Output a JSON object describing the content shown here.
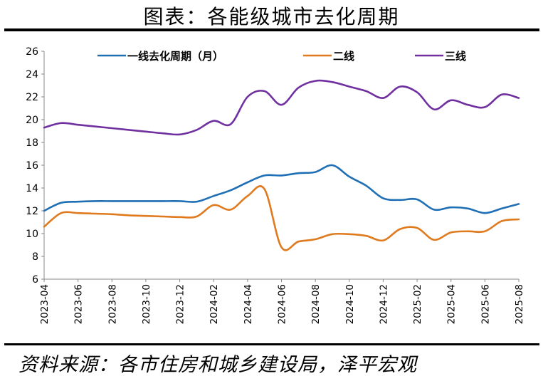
{
  "header": {
    "title": "图表：各能级城市去化周期"
  },
  "footer": {
    "source": "资料来源：各市住房和城乡建设局，泽平宏观"
  },
  "chart_data": {
    "type": "line",
    "title": "",
    "xlabel": "",
    "ylabel": "",
    "ylim": [
      6,
      26
    ],
    "yticks": [
      6,
      8,
      10,
      12,
      14,
      16,
      18,
      20,
      22,
      24,
      26
    ],
    "xrange": [
      "2023-04",
      "2025-08"
    ],
    "xticks": [
      "2023-04",
      "2023-06",
      "2023-08",
      "2023-10",
      "2023-12",
      "2024-02",
      "2024-04",
      "2024-06",
      "2024-08",
      "2024-10",
      "2024-12",
      "2025-02",
      "2025-04",
      "2025-06",
      "2025-08"
    ],
    "grid": false,
    "legend": "top",
    "series": [
      {
        "name": "一线去化周期（月）",
        "color": "#1f6fb4",
        "x": [
          "2023-04",
          "2023-05",
          "2023-06",
          "2023-07",
          "2023-08",
          "2023-09",
          "2023-10",
          "2023-11",
          "2023-12",
          "2024-01",
          "2024-02",
          "2024-03",
          "2024-04",
          "2024-05",
          "2024-06",
          "2024-07",
          "2024-08",
          "2024-09",
          "2024-10",
          "2024-11",
          "2024-12",
          "2025-01",
          "2025-02",
          "2025-03",
          "2025-04",
          "2025-05",
          "2025-06",
          "2025-07",
          "2025-08"
        ],
        "values": [
          12.0,
          12.7,
          12.8,
          12.85,
          12.85,
          12.85,
          12.85,
          12.85,
          12.85,
          12.8,
          13.3,
          13.8,
          14.5,
          15.1,
          15.1,
          15.3,
          15.4,
          16.0,
          15.0,
          14.2,
          13.1,
          12.95,
          13.0,
          12.1,
          12.3,
          12.2,
          11.8,
          12.2,
          12.6
        ]
      },
      {
        "name": "二线",
        "color": "#e07a1f",
        "x": [
          "2023-04",
          "2023-05",
          "2023-06",
          "2023-07",
          "2023-08",
          "2023-09",
          "2023-10",
          "2023-11",
          "2023-12",
          "2024-01",
          "2024-02",
          "2024-03",
          "2024-04",
          "2024-05",
          "2024-06",
          "2024-07",
          "2024-08",
          "2024-09",
          "2024-10",
          "2024-11",
          "2024-12",
          "2025-01",
          "2025-02",
          "2025-03",
          "2025-04",
          "2025-05",
          "2025-06",
          "2025-07",
          "2025-08"
        ],
        "values": [
          10.6,
          11.8,
          11.8,
          11.75,
          11.7,
          11.6,
          11.55,
          11.5,
          11.45,
          11.5,
          12.5,
          12.1,
          13.3,
          13.9,
          8.8,
          9.3,
          9.5,
          9.95,
          9.95,
          9.8,
          9.4,
          10.4,
          10.5,
          9.45,
          10.1,
          10.2,
          10.2,
          11.1,
          11.25
        ]
      },
      {
        "name": "三线",
        "color": "#7030a0",
        "x": [
          "2023-04",
          "2023-05",
          "2023-06",
          "2023-07",
          "2023-08",
          "2023-09",
          "2023-10",
          "2023-11",
          "2023-12",
          "2024-01",
          "2024-02",
          "2024-03",
          "2024-04",
          "2024-05",
          "2024-06",
          "2024-07",
          "2024-08",
          "2024-09",
          "2024-10",
          "2024-11",
          "2024-12",
          "2025-01",
          "2025-02",
          "2025-03",
          "2025-04",
          "2025-05",
          "2025-06",
          "2025-07",
          "2025-08"
        ],
        "values": [
          19.3,
          19.7,
          19.55,
          19.4,
          19.25,
          19.1,
          18.95,
          18.8,
          18.7,
          19.1,
          19.9,
          19.6,
          22.0,
          22.5,
          21.3,
          22.8,
          23.4,
          23.3,
          22.9,
          22.5,
          21.9,
          22.9,
          22.4,
          20.9,
          21.7,
          21.3,
          21.1,
          22.2,
          21.9
        ]
      }
    ]
  }
}
